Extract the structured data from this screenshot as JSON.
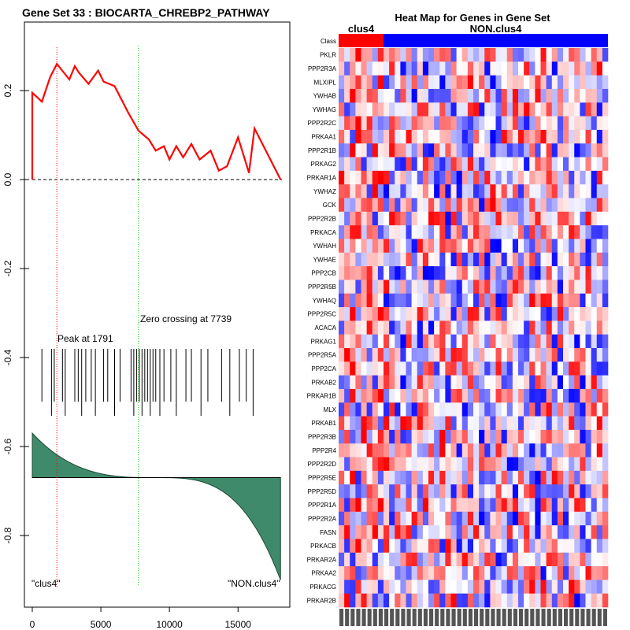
{
  "chart_data": [
    {
      "type": "line",
      "title": "Gene Set  33 : BIOCARTA_CHREBP2_PATHWAY",
      "xlim": [
        0,
        18200
      ],
      "ylim": [
        -0.9,
        0.32
      ],
      "x_ticks": [
        "0",
        "5000",
        "10000",
        "15000"
      ],
      "x_tick_values": [
        0,
        5000,
        10000,
        15000
      ],
      "y_ticks": [
        "0.2",
        "0.0",
        "-0.2",
        "-0.4",
        "-0.6",
        "-0.8"
      ],
      "y_tick_values": [
        0.2,
        0.0,
        -0.2,
        -0.4,
        -0.6,
        -0.8
      ],
      "peak_label": "Peak at 1791",
      "peak_x": 1791,
      "zero_label": "Zero crossing at 7739",
      "zero_x": 7739,
      "left_class_label": "\"clus4\"",
      "right_class_label": "\"NON.clus4\"",
      "running_es": {
        "x": [
          0,
          0,
          700,
          1300,
          1791,
          2700,
          3100,
          3400,
          4100,
          4800,
          5200,
          5600,
          6000,
          7000,
          7739,
          8500,
          9000,
          9600,
          10000,
          10500,
          11000,
          11600,
          12200,
          13000,
          13600,
          14200,
          15000,
          15800,
          16200,
          18100
        ],
        "y": [
          0.0,
          0.195,
          0.175,
          0.23,
          0.26,
          0.225,
          0.255,
          0.24,
          0.215,
          0.245,
          0.22,
          0.215,
          0.21,
          0.15,
          0.11,
          0.09,
          0.065,
          0.075,
          0.045,
          0.075,
          0.05,
          0.08,
          0.045,
          0.065,
          0.02,
          0.03,
          0.095,
          0.015,
          0.115,
          0.0
        ]
      },
      "hits": [
        700,
        1400,
        1600,
        2200,
        2400,
        3100,
        3350,
        3600,
        3900,
        4300,
        4600,
        5200,
        5500,
        6000,
        6400,
        7200,
        7400,
        7600,
        7800,
        8000,
        8200,
        8400,
        8600,
        8800,
        9000,
        9300,
        9600,
        10100,
        10500,
        11200,
        11600,
        12300,
        12800,
        13800,
        14400,
        15100,
        15600,
        16100
      ],
      "metric_baseline": -0.67,
      "metric_start": -0.57,
      "metric_end": -0.9
    },
    {
      "type": "heatmap",
      "title": "Heat Map for Genes in Gene Set",
      "class_label": "Class",
      "group_labels": [
        "clus4",
        "NON.clus4"
      ],
      "group_sizes": [
        8,
        40
      ],
      "group_colors": [
        "#ff0000",
        "#0000ff"
      ],
      "genes": [
        "PKLR",
        "PPP2R3A",
        "MLXIPL",
        "YWHAB",
        "YWHAG",
        "PPP2R2C",
        "PRKAA1",
        "PPP2R1B",
        "PRKAG2",
        "PRKAR1A",
        "YWHAZ",
        "GCK",
        "PPP2R2B",
        "PRKACA",
        "YWHAH",
        "YWHAE",
        "PPP2CB",
        "PPP2R5B",
        "YWHAQ",
        "PPP2R5C",
        "ACACA",
        "PRKAG1",
        "PPP2R5A",
        "PPP2CA",
        "PRKAB2",
        "PRKAR1B",
        "MLX",
        "PRKAB1",
        "PPP2R3B",
        "PPP2R4",
        "PPP2R2D",
        "PPP2R5E",
        "PPP2R5D",
        "PPP2R1A",
        "PPP2R2A",
        "FASN",
        "PRKACB",
        "PRKAR2A",
        "PRKAA2",
        "PRKACG",
        "PRKAR2B"
      ],
      "color_scale": [
        "#0000ff",
        "#ffffff",
        "#ff0000"
      ]
    }
  ]
}
